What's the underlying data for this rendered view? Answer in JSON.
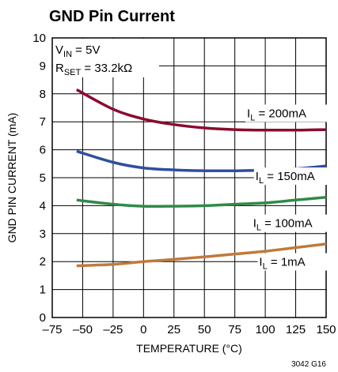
{
  "chart_data": {
    "type": "line",
    "title": "GND Pin Current",
    "xlabel": "TEMPERATURE (°C)",
    "ylabel": "GND PIN CURRENT (mA)",
    "xlim": [
      -75,
      150
    ],
    "ylim": [
      0,
      10
    ],
    "grid": true,
    "x_ticks": [
      -75,
      -50,
      -25,
      0,
      25,
      50,
      75,
      100,
      125,
      150
    ],
    "y_ticks": [
      0,
      1,
      2,
      3,
      4,
      5,
      6,
      7,
      8,
      9,
      10
    ],
    "x_tick_labels": [
      "–75",
      "–50",
      "–25",
      "0",
      "25",
      "50",
      "75",
      "100",
      "125",
      "150"
    ],
    "y_tick_labels": [
      "0",
      "1",
      "2",
      "3",
      "4",
      "5",
      "6",
      "7",
      "8",
      "9",
      "10"
    ],
    "conditions": {
      "vin_main": "V",
      "vin_sub": "IN",
      "vin_value": " = 5V",
      "rset_main": "R",
      "rset_sub": "SET",
      "rset_value": " = 33.2kΩ"
    },
    "figure_code": "3042 G16",
    "series": [
      {
        "label_main": "I",
        "label_sub": "L",
        "label_value": " = 200mA",
        "color": "#8b0a2e",
        "x": [
          -55,
          -25,
          0,
          25,
          50,
          75,
          100,
          125,
          150
        ],
        "y": [
          8.15,
          7.45,
          7.1,
          6.9,
          6.78,
          6.72,
          6.7,
          6.7,
          6.72
        ]
      },
      {
        "label_main": "I",
        "label_sub": "L",
        "label_value": " = 150mA",
        "color": "#2e4ea3",
        "x": [
          -55,
          -25,
          0,
          25,
          50,
          75,
          100,
          125,
          150
        ],
        "y": [
          5.95,
          5.55,
          5.35,
          5.28,
          5.25,
          5.25,
          5.27,
          5.32,
          5.42
        ]
      },
      {
        "label_main": "I",
        "label_sub": "L",
        "label_value": " = 100mA",
        "color": "#2e8b47",
        "x": [
          -55,
          -25,
          0,
          25,
          50,
          75,
          100,
          125,
          150
        ],
        "y": [
          4.2,
          4.05,
          3.98,
          3.98,
          4.0,
          4.05,
          4.1,
          4.2,
          4.3
        ]
      },
      {
        "label_main": "I",
        "label_sub": "L",
        "label_value": " = 1mA",
        "color": "#c07a3a",
        "x": [
          -55,
          -25,
          0,
          25,
          50,
          75,
          100,
          125,
          150
        ],
        "y": [
          1.85,
          1.9,
          2.0,
          2.08,
          2.17,
          2.27,
          2.37,
          2.5,
          2.63
        ]
      }
    ]
  }
}
